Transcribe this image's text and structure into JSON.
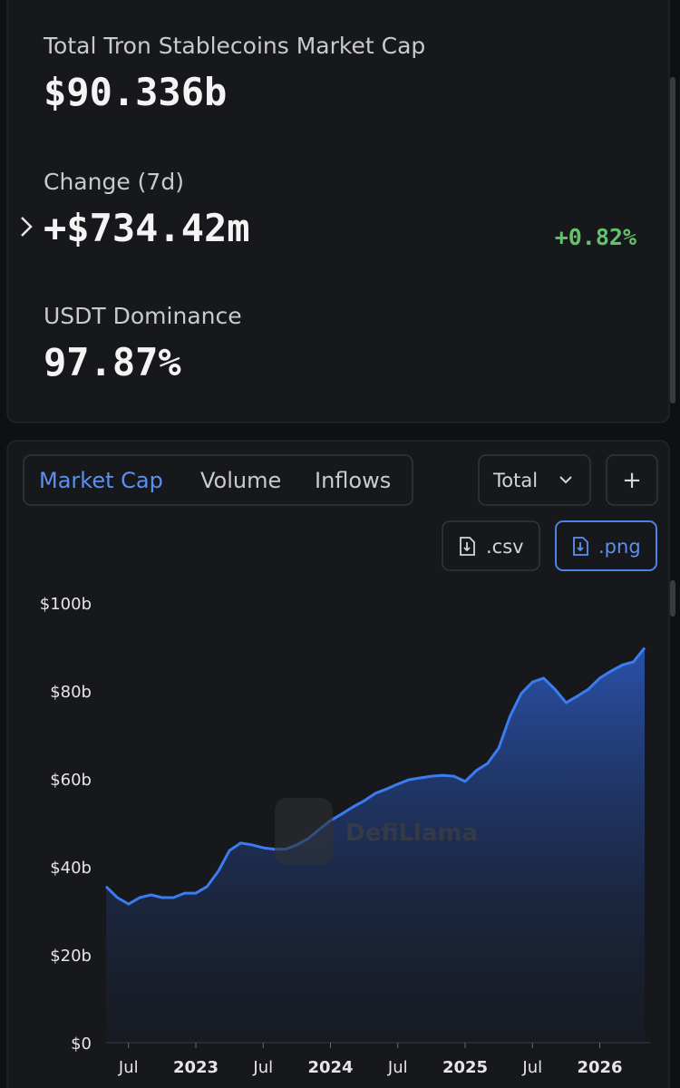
{
  "stats": [
    {
      "label": "Total Tron Stablecoins Market Cap",
      "value": "$90.336b"
    },
    {
      "label": "Change (7d)",
      "value": "+$734.42m",
      "percent": "+0.82%"
    },
    {
      "label": "USDT Dominance",
      "value": "97.87%"
    }
  ],
  "tabs": [
    "Market Cap",
    "Volume",
    "Inflows"
  ],
  "dropdown": "Total",
  "add_button": "+",
  "downloads": [
    ".csv",
    ".png"
  ],
  "watermark": "DefiLlama",
  "chart_data": {
    "type": "area",
    "color": "#3b7cf0",
    "x": [
      "2022-05",
      "2022-06",
      "2022-07",
      "2022-08",
      "2022-09",
      "2022-10",
      "2022-11",
      "2022-12",
      "2023-01",
      "2023-02",
      "2023-03",
      "2023-04",
      "2023-05",
      "2023-06",
      "2023-07",
      "2023-08",
      "2023-09",
      "2023-10",
      "2023-11",
      "2023-12",
      "2024-01",
      "2024-02",
      "2024-03",
      "2024-04",
      "2024-05",
      "2024-06",
      "2024-07",
      "2024-08",
      "2024-09",
      "2024-10",
      "2024-11",
      "2024-12",
      "2025-01",
      "2025-02",
      "2025-03",
      "2025-04",
      "2025-05",
      "2025-06",
      "2025-07",
      "2025-08",
      "2025-09",
      "2025-10",
      "2025-11",
      "2025-12",
      "2026-01",
      "2026-02",
      "2026-03",
      "2026-04",
      "2026-05"
    ],
    "values": [
      35.5,
      33,
      31.5,
      33,
      33.6,
      33,
      33,
      34,
      34,
      35.5,
      39,
      43.7,
      45.4,
      45,
      44.3,
      44,
      44,
      45,
      46.4,
      48.5,
      50.5,
      52,
      53.6,
      55,
      56.7,
      57.7,
      58.8,
      59.8,
      60.2,
      60.6,
      60.8,
      60.6,
      59.4,
      61.9,
      63.5,
      67,
      74.2,
      79.4,
      82,
      82.9,
      80.4,
      77.3,
      78.8,
      80.4,
      82.9,
      84.5,
      85.9,
      86.6,
      89.8
    ],
    "xlim": [
      "2022-05",
      "2026-05"
    ],
    "xticks": [
      {
        "value": "2022-07",
        "label": "Jul"
      },
      {
        "value": "2023-01",
        "label": "2023"
      },
      {
        "value": "2023-07",
        "label": "Jul"
      },
      {
        "value": "2024-01",
        "label": "2024"
      },
      {
        "value": "2024-07",
        "label": "Jul"
      },
      {
        "value": "2025-01",
        "label": "2025"
      },
      {
        "value": "2025-07",
        "label": "Jul"
      },
      {
        "value": "2026-01",
        "label": "2026"
      }
    ],
    "ylim": [
      0,
      100
    ],
    "yticks": [
      {
        "value": 0,
        "label": "$0"
      },
      {
        "value": 20,
        "label": "$20b"
      },
      {
        "value": 40,
        "label": "$40b"
      },
      {
        "value": 60,
        "label": "$60b"
      },
      {
        "value": 80,
        "label": "$80b"
      },
      {
        "value": 100,
        "label": "$100b"
      }
    ]
  }
}
